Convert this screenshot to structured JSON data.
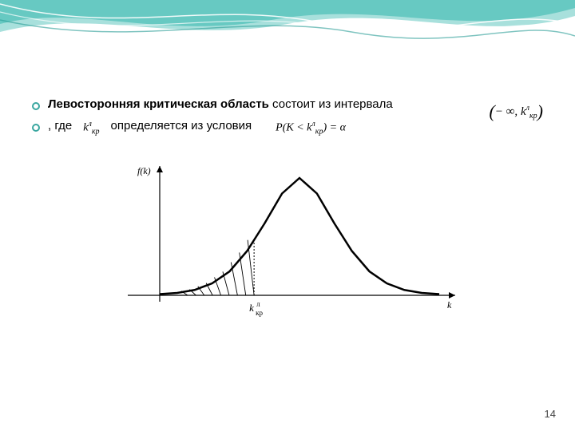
{
  "header": {
    "wave_color_light": "#a8e0dc",
    "wave_color_mid": "#5cc4bd",
    "wave_color_dark": "#2a9d96",
    "wave_stroke": "#ffffff"
  },
  "bullets": {
    "bullet_color": "#3aa7a0",
    "line1_bold": "Левосторонняя критическая область",
    "line1_rest": " состоит из интервала",
    "line2_a": ", где",
    "line2_b": "определяется из условия",
    "k_label": "k",
    "kr_sub": "кр",
    "lambda_sup": "λ",
    "interval_open": "(−∞, ",
    "interval_close": ")",
    "prob_left": "P(K < ",
    "prob_right": ") = α"
  },
  "chart": {
    "type": "line",
    "y_axis_label": "f(k)",
    "x_axis_label": "k",
    "critical_label_k": "k",
    "critical_label_sup": "л",
    "critical_label_sub": "кр",
    "axis_color": "#000000",
    "curve_color": "#000000",
    "curve_width": 2.5,
    "hatch_color": "#000000",
    "background": "#ffffff",
    "xlim": [
      -4,
      4
    ],
    "ylim": [
      0,
      1
    ],
    "critical_x": -1.3,
    "curve_points": [
      [
        -4,
        0.01
      ],
      [
        -3.5,
        0.02
      ],
      [
        -3,
        0.045
      ],
      [
        -2.5,
        0.1
      ],
      [
        -2,
        0.2
      ],
      [
        -1.5,
        0.37
      ],
      [
        -1,
        0.6
      ],
      [
        -0.5,
        0.85
      ],
      [
        0,
        0.98
      ],
      [
        0.5,
        0.85
      ],
      [
        1,
        0.6
      ],
      [
        1.5,
        0.37
      ],
      [
        2,
        0.2
      ],
      [
        2.5,
        0.1
      ],
      [
        3,
        0.045
      ],
      [
        3.5,
        0.02
      ],
      [
        4,
        0.01
      ]
    ],
    "hatch_lines": 9
  },
  "page_number": "14"
}
